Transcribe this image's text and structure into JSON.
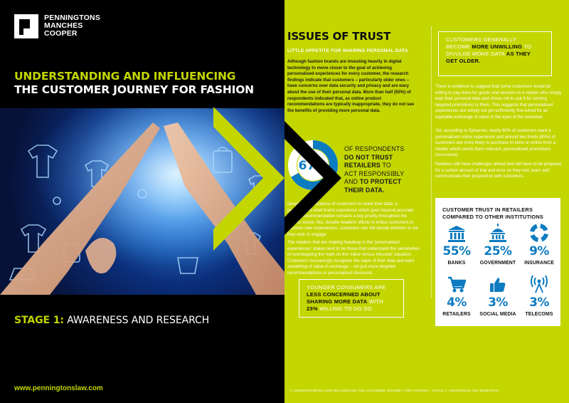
{
  "left_page": {
    "logo_lines": [
      "PENNINGTONS",
      "MANCHES",
      "COOPER"
    ],
    "title_line1": "UNDERSTANDING AND INFLUENCING",
    "title_line2": "THE CUSTOMER JOURNEY FOR FASHION",
    "stage_prefix": "STAGE 1:",
    "stage_text": "AWARENESS AND RESEARCH",
    "url": "www.penningtonslaw.com"
  },
  "right_page": {
    "heading": "ISSUES OF TRUST",
    "subheading": "LITTLE APPETITE FOR SHARING PERSONAL DATA",
    "intro": "Although fashion brands are investing heavily in digital technology to move closer to the goal of achieving personalised experiences for every customer, the research findings indicate that customers – particularly older ones – have concerns over data security and privacy and are wary about the use of their personal data. More than half (55%) of respondents indicated that, as online product recommendations are typically inappropriate, they do not see the benefits of providing more personal data.",
    "stat": {
      "value": "67%",
      "fraction": 0.67,
      "line1": "OF RESPONDENTS",
      "line2_bold": "DO NOT TRUST",
      "line3_bold": "RETAILERS",
      "line3_rest": " TO",
      "line4": "ACT RESPONSIBLY",
      "line5_pre": "AND ",
      "line5_bold": "TO PROTECT",
      "line6_bold": "THEIR DATA."
    },
    "body1": "Despite the reluctance of customers to share their data, a personalised retail brand experience which goes beyond accurate product recommendation remains a key priority throughout the fashion sector. But, despite retailers' efforts to entice customers to discover new experiences, customers can still decide whether or not they wish to engage.",
    "body2": "The retailers that are making headway in the 'personalised experiences' stakes tend to be those that understand the sensitivities of overstepping the mark on the 'value versus intrusion' equation. Customers increasingly recognise the value of their data and want something of value in exchange – not just more targeted recommendations or personalised discounts.",
    "quote_left": {
      "p1": "YOUNGER CONSUMERS ARE",
      "b1": "LESS CONCERNED ABOUT",
      "b2": "SHARING MORE DATA",
      "p2": " WITH",
      "b3": "23%",
      "p3": " WILLING TO DO SO."
    },
    "quote_right": {
      "p1": "CUSTOMERS GENERALLY",
      "p2": "BECOME ",
      "b1": "MORE UNWILLING",
      "p3": " TO",
      "p4": "DIVULGE MORE DATA ",
      "b2": "AS THEY",
      "b3": "GET OLDER."
    },
    "body3": "There is evidence to suggest that some customers would be willing to pay more for goods and services to a retailer who simply kept their personal data and chose not to use it for serving targeted promotions to them. This suggests that personalised experiences are simply not yet sufficiently fine-tuned for an equitable exchange of value in the eyes of the customer.",
    "body4": "Yet, according to Episerver, nearly 60% of customers want a personalised online experience and around two thirds (65%) of customers are more likely to purchase in-store or online from a retailer which sends them relevant, personalised promotions (Accenture).",
    "body5": "Retailers still have challenges ahead and will have to be prepared for a certain amount of trial and error as they test, learn and communicate their proposition with customers.",
    "trust_box": {
      "title_line1": "CUSTOMER TRUST IN RETAILERS",
      "title_line2": "COMPARED TO OTHER INSTITUTIONS",
      "items": [
        {
          "pct": "55%",
          "label": "BANKS",
          "icon": "bank-icon"
        },
        {
          "pct": "25%",
          "label": "GOVERNMENT",
          "icon": "capitol-icon"
        },
        {
          "pct": "9%",
          "label": "INSURANCE",
          "icon": "lifebuoy-icon"
        },
        {
          "pct": "4%",
          "label": "RETAILERS",
          "icon": "shopping-cart-icon"
        },
        {
          "pct": "3%",
          "label": "SOCIAL MEDIA",
          "icon": "thumbs-up-icon"
        },
        {
          "pct": "3%",
          "label": "TELECOMS",
          "icon": "antenna-icon"
        }
      ]
    },
    "footer_page": "7",
    "footer_text": "UNDERSTANDING AND INFLUENCING THE CUSTOMER JOURNEY FOR FASHION – STAGE 1: AWARENESS AND RESEARCH"
  },
  "colors": {
    "accent_lime": "#c3d600",
    "blue": "#0d7bc0",
    "black": "#000000"
  }
}
